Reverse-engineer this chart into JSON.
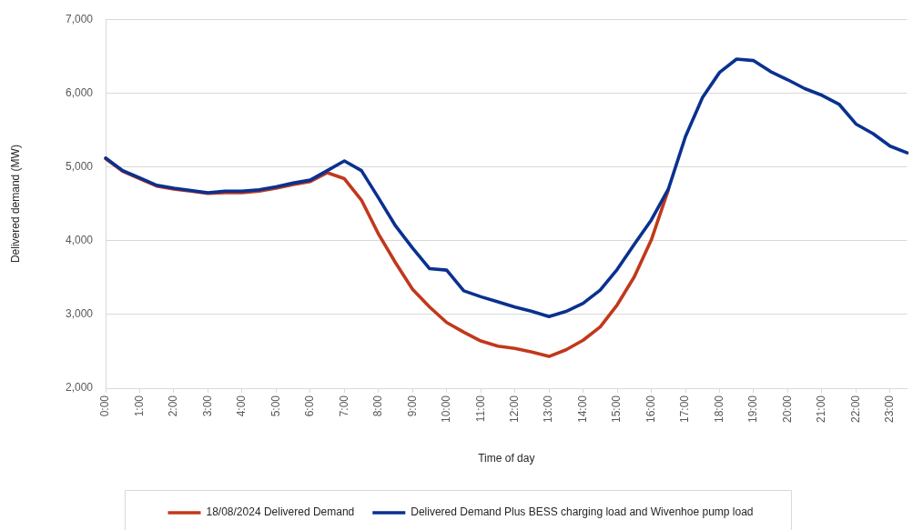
{
  "chart_data": {
    "type": "line",
    "xlabel": "Time of day",
    "ylabel": "Delivered demand (MW)",
    "categories": [
      "0:00",
      null,
      "1:00",
      null,
      "2:00",
      null,
      "3:00",
      null,
      "4:00",
      null,
      "5:00",
      null,
      "6:00",
      null,
      "7:00",
      null,
      "8:00",
      null,
      "9:00",
      null,
      "10:00",
      null,
      "11:00",
      null,
      "12:00",
      null,
      "13:00",
      null,
      "14:00",
      null,
      "15:00",
      null,
      "16:00",
      null,
      "17:00",
      null,
      "18:00",
      null,
      "19:00",
      null,
      "20:00",
      null,
      "21:00",
      null,
      "22:00",
      null,
      "23:00",
      null
    ],
    "series": [
      {
        "name": "18/08/2024 Delivered Demand",
        "color": "#c1381b",
        "values": [
          5110,
          4940,
          4840,
          4740,
          4700,
          4670,
          4640,
          4650,
          4650,
          4670,
          4710,
          4760,
          4800,
          4920,
          4840,
          4550,
          4090,
          3700,
          3340,
          3100,
          2890,
          2760,
          2640,
          2570,
          2540,
          2490,
          2430,
          2520,
          2650,
          2830,
          3130,
          3510,
          4010,
          4690,
          null,
          null,
          null,
          null,
          null,
          null,
          null,
          null,
          null,
          null,
          null,
          null,
          null,
          null
        ]
      },
      {
        "name": "Delivered Demand Plus BESS charging load and Wivenhoe pump load",
        "color": "#0a318f",
        "values": [
          5120,
          4950,
          4850,
          4750,
          4710,
          4680,
          4650,
          4670,
          4670,
          4690,
          4730,
          4780,
          4820,
          4950,
          5080,
          4950,
          4580,
          4200,
          3900,
          3620,
          3600,
          3320,
          3240,
          3170,
          3100,
          3040,
          2970,
          3040,
          3150,
          3330,
          3610,
          3950,
          4280,
          4700,
          5410,
          5940,
          6280,
          6460,
          6440,
          6290,
          6180,
          6060,
          5970,
          5850,
          5580,
          5450,
          5280,
          5190
        ]
      }
    ],
    "ylim": [
      2000,
      7000
    ],
    "yticks": [
      {
        "value": 2000,
        "label": "2,000"
      },
      {
        "value": 3000,
        "label": "3,000"
      },
      {
        "value": 4000,
        "label": "4,000"
      },
      {
        "value": 5000,
        "label": "5,000"
      },
      {
        "value": 6000,
        "label": "6,000"
      },
      {
        "value": 7000,
        "label": "7,000"
      }
    ],
    "grid": "y",
    "legend": "bottom",
    "marker": "none"
  }
}
